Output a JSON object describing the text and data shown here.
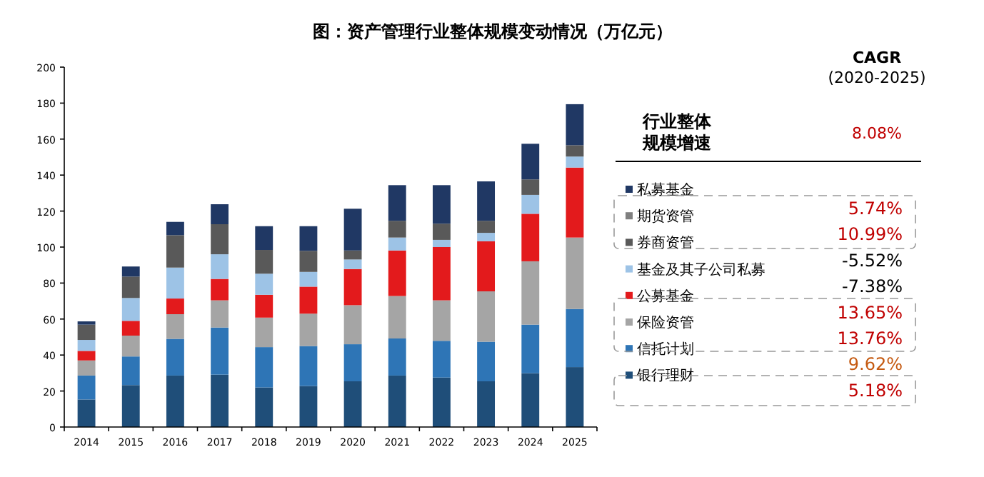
{
  "chart_data": {
    "type": "bar",
    "title": "图：资产管理行业整体规模变动情况（万亿元）",
    "categories": [
      "2014",
      "2015",
      "2016",
      "2017",
      "2018",
      "2019",
      "2020",
      "2021",
      "2022",
      "2023",
      "2024",
      "2025"
    ],
    "stacked": true,
    "ylim": [
      0,
      200
    ],
    "yticks": [
      0,
      20,
      40,
      60,
      80,
      100,
      120,
      140,
      160,
      180,
      200
    ],
    "grid": false,
    "legend": "right",
    "series": [
      {
        "name": "银行理财",
        "color": "#1f4e79",
        "values": [
          15.3,
          23.3,
          28.6,
          29.1,
          22.0,
          22.8,
          25.4,
          28.6,
          27.5,
          25.4,
          29.9,
          33.3
        ]
      },
      {
        "name": "信托计划",
        "color": "#2e75b6",
        "values": [
          13.3,
          15.9,
          20.4,
          26.2,
          22.4,
          22.2,
          20.6,
          20.6,
          20.4,
          22.0,
          27.0,
          32.3
        ]
      },
      {
        "name": "保险资管",
        "color": "#a5a5a5",
        "values": [
          8.4,
          11.6,
          13.7,
          15.1,
          16.4,
          18.0,
          21.7,
          23.6,
          22.5,
          28.0,
          35.2,
          39.7
        ]
      },
      {
        "name": "公募基金",
        "color": "#e31a1c",
        "values": [
          5.3,
          8.2,
          8.7,
          11.9,
          12.7,
          15.0,
          20.1,
          25.3,
          29.6,
          27.8,
          26.4,
          38.9
        ]
      },
      {
        "name": "基金及其子公司私募",
        "color": "#9dc3e6",
        "values": [
          6.1,
          12.7,
          17.2,
          13.7,
          11.7,
          8.2,
          5.3,
          7.2,
          4.0,
          4.7,
          10.5,
          6.1
        ]
      },
      {
        "name": "券商资管",
        "color": "#595959",
        "values": [
          8.5,
          11.9,
          18.0,
          16.7,
          13.2,
          11.7,
          5.0,
          9.3,
          9.0,
          6.7,
          8.6,
          6.3
        ]
      },
      {
        "name": "期货资管",
        "color": "#7f7f7f",
        "values": [
          null,
          null,
          null,
          null,
          null,
          null,
          null,
          null,
          null,
          null,
          null,
          null
        ]
      },
      {
        "name": "私募基金",
        "color": "#203864",
        "values": [
          1.8,
          5.6,
          7.4,
          11.1,
          13.2,
          13.7,
          23.2,
          19.8,
          21.4,
          21.9,
          19.8,
          22.8
        ]
      }
    ],
    "annotations": [
      "CAGR",
      "(2020-2025)",
      "行业整体规模增速",
      "8.08%",
      "5.74%",
      "10.99%",
      "-5.52%",
      "-7.38%",
      "13.65%",
      "13.76%",
      "9.62%",
      "5.18%"
    ]
  }
}
